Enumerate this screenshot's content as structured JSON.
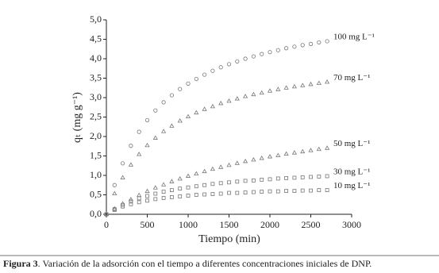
{
  "chart_data": {
    "type": "scatter",
    "x_label": "Tiempo (min)",
    "y_label": "qₜ (mg g⁻¹)",
    "x": [
      0,
      100,
      200,
      300,
      400,
      500,
      600,
      700,
      800,
      900,
      1000,
      1100,
      1200,
      1300,
      1400,
      1500,
      1600,
      1700,
      1800,
      1900,
      2000,
      2100,
      2200,
      2300,
      2400,
      2500,
      2600,
      2700
    ],
    "series": [
      {
        "name": "100 mg L⁻¹",
        "color": "#777777",
        "marker": "circle",
        "values": [
          0,
          0.75,
          1.31,
          1.76,
          2.12,
          2.42,
          2.67,
          2.88,
          3.06,
          3.22,
          3.36,
          3.48,
          3.59,
          3.69,
          3.78,
          3.86,
          3.93,
          4.0,
          4.06,
          4.12,
          4.17,
          4.22,
          4.27,
          4.31,
          4.35,
          4.38,
          4.42,
          4.45
        ]
      },
      {
        "name": "70 mg L⁻¹",
        "color": "#777777",
        "marker": "triangle",
        "values": [
          0,
          0.53,
          0.94,
          1.27,
          1.54,
          1.77,
          1.96,
          2.13,
          2.27,
          2.4,
          2.51,
          2.61,
          2.7,
          2.77,
          2.85,
          2.91,
          2.97,
          3.03,
          3.08,
          3.12,
          3.17,
          3.21,
          3.25,
          3.28,
          3.31,
          3.34,
          3.37,
          3.4
        ]
      },
      {
        "name": "50 mg L⁻¹",
        "color": "#777777",
        "marker": "triangle",
        "values": [
          0,
          0.14,
          0.27,
          0.38,
          0.49,
          0.59,
          0.68,
          0.76,
          0.84,
          0.91,
          0.98,
          1.04,
          1.1,
          1.16,
          1.21,
          1.26,
          1.31,
          1.36,
          1.4,
          1.44,
          1.48,
          1.51,
          1.55,
          1.58,
          1.61,
          1.64,
          1.67,
          1.7
        ]
      },
      {
        "name": "30 mg L⁻¹",
        "color": "#777777",
        "marker": "square",
        "values": [
          0,
          0.13,
          0.24,
          0.33,
          0.41,
          0.47,
          0.53,
          0.58,
          0.62,
          0.66,
          0.69,
          0.72,
          0.75,
          0.78,
          0.8,
          0.82,
          0.84,
          0.86,
          0.87,
          0.89,
          0.9,
          0.92,
          0.93,
          0.94,
          0.95,
          0.96,
          0.97,
          0.98
        ]
      },
      {
        "name": "10 mg L⁻¹",
        "color": "#777777",
        "marker": "square",
        "values": [
          0,
          0.11,
          0.2,
          0.26,
          0.31,
          0.35,
          0.39,
          0.42,
          0.44,
          0.46,
          0.48,
          0.5,
          0.51,
          0.52,
          0.53,
          0.55,
          0.55,
          0.56,
          0.57,
          0.58,
          0.59,
          0.59,
          0.6,
          0.6,
          0.61,
          0.61,
          0.62,
          0.62
        ]
      }
    ],
    "xlim": [
      0,
      3000
    ],
    "xticks": [
      0,
      500,
      1000,
      1500,
      2000,
      2500,
      3000
    ],
    "ylim": [
      0,
      5
    ],
    "yticks": [
      {
        "value": 0,
        "label": "0,0"
      },
      {
        "value": 0.5,
        "label": "0,5"
      },
      {
        "value": 1,
        "label": "1,0"
      },
      {
        "value": 1.5,
        "label": "1,5"
      },
      {
        "value": 2,
        "label": "2,0"
      },
      {
        "value": 2.5,
        "label": "2,5"
      },
      {
        "value": 3,
        "label": "3,0"
      },
      {
        "value": 3.5,
        "label": "3,5"
      },
      {
        "value": 4,
        "label": "4,0"
      },
      {
        "value": 4.5,
        "label": "4,5"
      },
      {
        "value": 5,
        "label": "5,0"
      }
    ],
    "grid": false
  },
  "caption": {
    "label": "Figura 3",
    "text": ". Variación de la adsorción con el tiempo a diferentes concentraciones iniciales de DNP."
  }
}
